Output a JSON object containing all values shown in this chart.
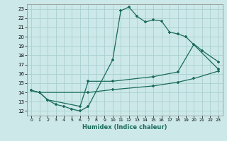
{
  "xlabel": "Humidex (Indice chaleur)",
  "bg_color": "#cce8e8",
  "grid_color": "#aacfcf",
  "line_color": "#1a6b5a",
  "xlim": [
    -0.5,
    23.5
  ],
  "ylim": [
    11.5,
    23.5
  ],
  "xticks": [
    0,
    1,
    2,
    3,
    4,
    5,
    6,
    7,
    8,
    9,
    10,
    11,
    12,
    13,
    14,
    15,
    16,
    17,
    18,
    19,
    20,
    21,
    22,
    23
  ],
  "yticks": [
    12,
    13,
    14,
    15,
    16,
    17,
    18,
    19,
    20,
    21,
    22,
    23
  ],
  "line1_x": [
    0,
    1,
    2,
    3,
    4,
    5,
    6,
    7,
    10,
    11,
    12,
    13,
    14,
    15,
    16,
    17,
    18,
    19,
    23
  ],
  "line1_y": [
    14.2,
    14.0,
    13.2,
    12.7,
    12.5,
    12.2,
    12.0,
    12.5,
    17.5,
    22.8,
    23.2,
    22.2,
    21.6,
    21.8,
    21.7,
    20.5,
    20.3,
    20.0,
    16.5
  ],
  "line2_x": [
    0,
    1,
    2,
    6,
    7,
    10,
    15,
    18,
    20,
    21,
    23
  ],
  "line2_y": [
    14.2,
    14.0,
    13.2,
    12.5,
    15.2,
    15.2,
    15.7,
    16.2,
    19.2,
    18.5,
    17.3
  ],
  "line3_x": [
    0,
    1,
    7,
    10,
    15,
    18,
    20,
    23
  ],
  "line3_y": [
    14.2,
    14.0,
    14.0,
    14.3,
    14.7,
    15.1,
    15.5,
    16.3
  ]
}
